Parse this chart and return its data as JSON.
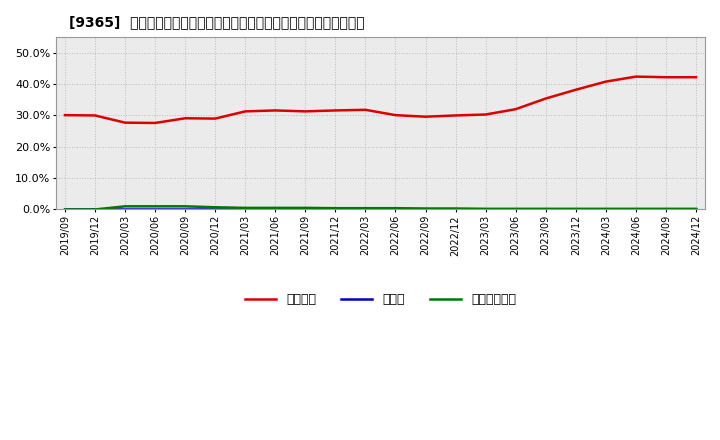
{
  "title": "[9365]  自己資本、のれん、繰延税金資産の総資産に対する比率の推移",
  "x_labels": [
    "2019/09",
    "2019/12",
    "2020/03",
    "2020/06",
    "2020/09",
    "2020/12",
    "2021/03",
    "2021/06",
    "2021/09",
    "2021/12",
    "2022/03",
    "2022/06",
    "2022/09",
    "2022/12",
    "2023/03",
    "2023/06",
    "2023/09",
    "2023/12",
    "2024/03",
    "2024/06",
    "2024/09",
    "2024/12"
  ],
  "jikoshihon": [
    0.301,
    0.3,
    0.277,
    0.276,
    0.291,
    0.29,
    0.313,
    0.316,
    0.313,
    0.316,
    0.318,
    0.301,
    0.296,
    0.3,
    0.303,
    0.32,
    0.354,
    0.382,
    0.408,
    0.424,
    0.422,
    0.422
  ],
  "noren": [
    0.0,
    0.0,
    0.0,
    0.0,
    0.0,
    0.0,
    0.0,
    0.0,
    0.0,
    0.0,
    0.0,
    0.0,
    0.0,
    0.0,
    0.0,
    0.0,
    0.0,
    0.0,
    0.0,
    0.0,
    0.0,
    0.0
  ],
  "kurinobe": [
    0.0,
    0.0,
    0.01,
    0.01,
    0.01,
    0.007,
    0.005,
    0.005,
    0.005,
    0.004,
    0.004,
    0.004,
    0.003,
    0.003,
    0.002,
    0.002,
    0.002,
    0.002,
    0.002,
    0.002,
    0.002,
    0.002
  ],
  "jikoshihon_color": "#dd0000",
  "noren_color": "#0000cc",
  "kurinobe_color": "#007700",
  "bg_color": "#ffffff",
  "plot_bg_color": "#ebebeb",
  "grid_color": "#bbbbbb",
  "ylim": [
    0.0,
    0.55
  ],
  "yticks": [
    0.0,
    0.1,
    0.2,
    0.3,
    0.4,
    0.5
  ],
  "legend_labels": [
    "自己資本",
    "のれん",
    "繰延税金資産"
  ]
}
